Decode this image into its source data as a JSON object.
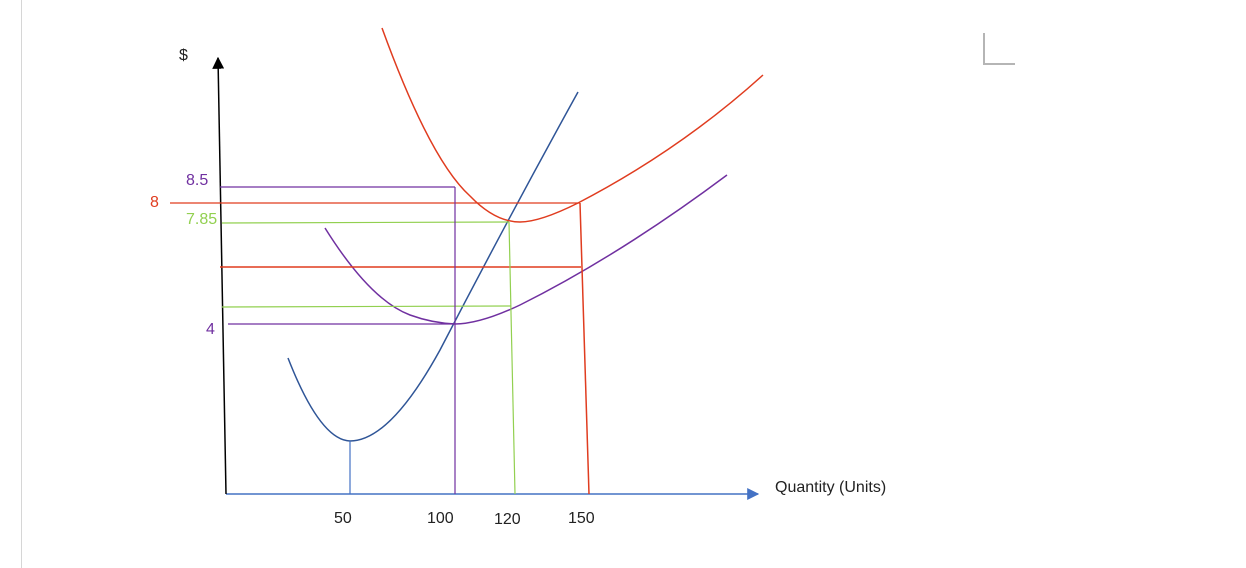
{
  "chart_data": {
    "type": "line",
    "title": "",
    "xlabel": "Quantity (Units)",
    "ylabel": "$",
    "x_ticks": [
      {
        "value": 50,
        "label": "50"
      },
      {
        "value": 100,
        "label": "100"
      },
      {
        "value": 120,
        "label": "120"
      },
      {
        "value": 150,
        "label": "150"
      }
    ],
    "y_ticks": [
      {
        "value": 8.5,
        "label": "8.5",
        "color": "#7030a0"
      },
      {
        "value": 8,
        "label": "8",
        "color": "#e03c1f"
      },
      {
        "value": 7.85,
        "label": "7.85",
        "color": "#92d050"
      },
      {
        "value": 4,
        "label": "4",
        "color": "#7030a0"
      }
    ],
    "colors": {
      "axis_x": "#4472c4",
      "axis_y": "#000000",
      "mc": "#2f5597",
      "atc": "#e03c1f",
      "avc": "#7030a0",
      "green": "#92d050",
      "orange": "#e03c1f",
      "purple": "#7030a0",
      "tick_text": "#222222"
    }
  }
}
